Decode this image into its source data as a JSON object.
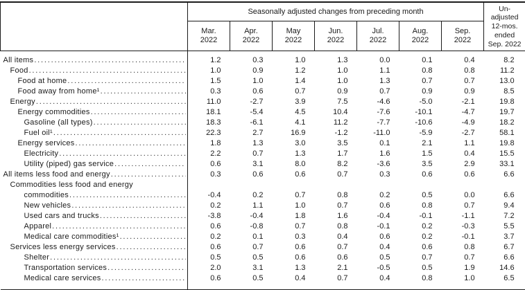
{
  "header": {
    "group_title": "Seasonally adjusted changes from preceding month",
    "unadjusted_lines": [
      "Un-",
      "adjusted",
      "12-mos.",
      "ended",
      "Sep. 2022"
    ],
    "columns": [
      {
        "month": "Mar.",
        "year": "2022"
      },
      {
        "month": "Apr.",
        "year": "2022"
      },
      {
        "month": "May",
        "year": "2022"
      },
      {
        "month": "Jun.",
        "year": "2022"
      },
      {
        "month": "Jul.",
        "year": "2022"
      },
      {
        "month": "Aug.",
        "year": "2022"
      },
      {
        "month": "Sep.",
        "year": "2022"
      }
    ]
  },
  "rows": [
    {
      "label": "All items",
      "indent": 0,
      "values": [
        "1.2",
        "0.3",
        "1.0",
        "1.3",
        "0.0",
        "0.1",
        "0.4"
      ],
      "annual": "8.2"
    },
    {
      "label": "Food",
      "indent": 1,
      "values": [
        "1.0",
        "0.9",
        "1.2",
        "1.0",
        "1.1",
        "0.8",
        "0.8"
      ],
      "annual": "11.2"
    },
    {
      "label": "Food at home",
      "indent": 2,
      "values": [
        "1.5",
        "1.0",
        "1.4",
        "1.0",
        "1.3",
        "0.7",
        "0.7"
      ],
      "annual": "13.0"
    },
    {
      "label": "Food away from home¹",
      "indent": 2,
      "values": [
        "0.3",
        "0.6",
        "0.7",
        "0.9",
        "0.7",
        "0.9",
        "0.9"
      ],
      "annual": "8.5"
    },
    {
      "label": "Energy",
      "indent": 1,
      "values": [
        "11.0",
        "-2.7",
        "3.9",
        "7.5",
        "-4.6",
        "-5.0",
        "-2.1"
      ],
      "annual": "19.8"
    },
    {
      "label": "Energy commodities",
      "indent": 2,
      "values": [
        "18.1",
        "-5.4",
        "4.5",
        "10.4",
        "-7.6",
        "-10.1",
        "-4.7"
      ],
      "annual": "19.7"
    },
    {
      "label": "Gasoline (all types)",
      "indent": 3,
      "values": [
        "18.3",
        "-6.1",
        "4.1",
        "11.2",
        "-7.7",
        "-10.6",
        "-4.9"
      ],
      "annual": "18.2"
    },
    {
      "label": "Fuel oil¹",
      "indent": 3,
      "values": [
        "22.3",
        "2.7",
        "16.9",
        "-1.2",
        "-11.0",
        "-5.9",
        "-2.7"
      ],
      "annual": "58.1"
    },
    {
      "label": "Energy services",
      "indent": 2,
      "values": [
        "1.8",
        "1.3",
        "3.0",
        "3.5",
        "0.1",
        "2.1",
        "1.1"
      ],
      "annual": "19.8"
    },
    {
      "label": "Electricity",
      "indent": 3,
      "values": [
        "2.2",
        "0.7",
        "1.3",
        "1.7",
        "1.6",
        "1.5",
        "0.4"
      ],
      "annual": "15.5"
    },
    {
      "label": "Utility (piped) gas service",
      "indent": 3,
      "values": [
        "0.6",
        "3.1",
        "8.0",
        "8.2",
        "-3.6",
        "3.5",
        "2.9"
      ],
      "annual": "33.1"
    },
    {
      "label": "All items less food and energy",
      "indent": 0,
      "values": [
        "0.3",
        "0.6",
        "0.6",
        "0.7",
        "0.3",
        "0.6",
        "0.6"
      ],
      "annual": "6.6"
    },
    {
      "label": "Commodities less food and energy",
      "label2": "commodities",
      "indent": 1,
      "indent2": 3,
      "values": [
        "-0.4",
        "0.2",
        "0.7",
        "0.8",
        "0.2",
        "0.5",
        "0.0"
      ],
      "annual": "6.6"
    },
    {
      "label": "New vehicles",
      "indent": 3,
      "values": [
        "0.2",
        "1.1",
        "1.0",
        "0.7",
        "0.6",
        "0.8",
        "0.7"
      ],
      "annual": "9.4"
    },
    {
      "label": "Used cars and trucks",
      "indent": 3,
      "values": [
        "-3.8",
        "-0.4",
        "1.8",
        "1.6",
        "-0.4",
        "-0.1",
        "-1.1"
      ],
      "annual": "7.2"
    },
    {
      "label": "Apparel",
      "indent": 3,
      "values": [
        "0.6",
        "-0.8",
        "0.7",
        "0.8",
        "-0.1",
        "0.2",
        "-0.3"
      ],
      "annual": "5.5"
    },
    {
      "label": "Medical care commodities¹",
      "indent": 3,
      "values": [
        "0.2",
        "0.1",
        "0.3",
        "0.4",
        "0.6",
        "0.2",
        "-0.1"
      ],
      "annual": "3.7"
    },
    {
      "label": "Services less energy services",
      "indent": 1,
      "values": [
        "0.6",
        "0.7",
        "0.6",
        "0.7",
        "0.4",
        "0.6",
        "0.8"
      ],
      "annual": "6.7"
    },
    {
      "label": "Shelter",
      "indent": 3,
      "values": [
        "0.5",
        "0.5",
        "0.6",
        "0.6",
        "0.5",
        "0.7",
        "0.7"
      ],
      "annual": "6.6"
    },
    {
      "label": "Transportation services",
      "indent": 3,
      "values": [
        "2.0",
        "3.1",
        "1.3",
        "2.1",
        "-0.5",
        "0.5",
        "1.9"
      ],
      "annual": "14.6"
    },
    {
      "label": "Medical care services",
      "indent": 3,
      "values": [
        "0.6",
        "0.5",
        "0.4",
        "0.7",
        "0.4",
        "0.8",
        "1.0"
      ],
      "annual": "6.5"
    }
  ]
}
